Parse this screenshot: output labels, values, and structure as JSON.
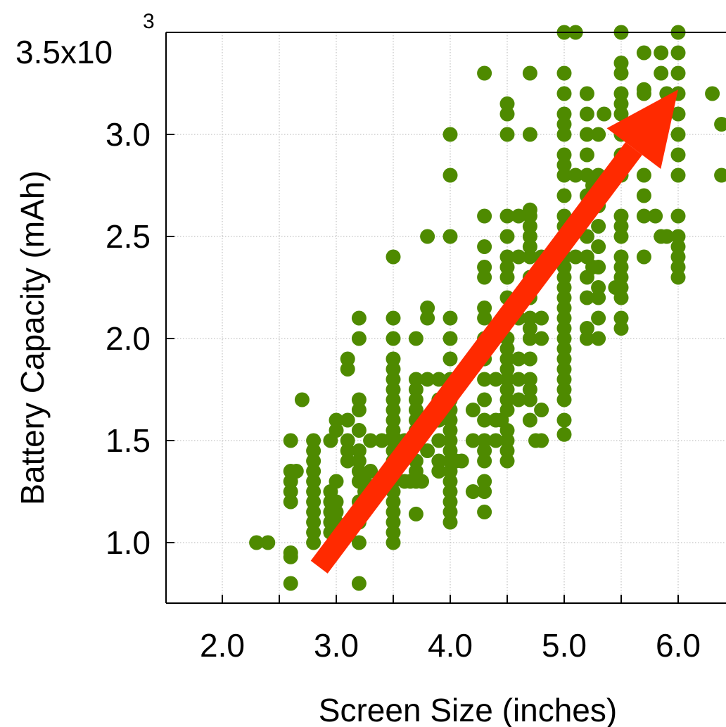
{
  "chart_data": {
    "type": "scatter",
    "xlabel": "Screen Size (inches)",
    "ylabel": "Battery Capacity (mAh)",
    "y_scale_label": {
      "base": "3.5x10",
      "exponent": "3"
    },
    "xlim": [
      1.5,
      6.4
    ],
    "ylim": [
      0.7,
      3.5
    ],
    "x_ticks": [
      {
        "value": 2.0,
        "label": "2.0"
      },
      {
        "value": 3.0,
        "label": "3.0"
      },
      {
        "value": 4.0,
        "label": "4.0"
      },
      {
        "value": 5.0,
        "label": "5.0"
      },
      {
        "value": 6.0,
        "label": "6.0"
      }
    ],
    "y_ticks": [
      {
        "value": 1.0,
        "label": "1.0"
      },
      {
        "value": 1.5,
        "label": "1.5"
      },
      {
        "value": 2.0,
        "label": "2.0"
      },
      {
        "value": 2.5,
        "label": "2.5"
      },
      {
        "value": 3.0,
        "label": "3.0"
      }
    ],
    "x_grid": [
      2.0,
      2.5,
      3.0,
      3.5,
      4.0,
      4.5,
      5.0,
      5.5,
      6.0
    ],
    "y_grid": [
      1.0,
      1.5,
      2.0,
      2.5,
      3.0
    ],
    "grid": true,
    "point_color": "#4e8a00",
    "arrow_color": "#ff2a00",
    "trend_arrow": {
      "from": [
        2.85,
        0.88
      ],
      "to": [
        6.0,
        3.22
      ]
    },
    "points": [
      [
        2.3,
        1.0
      ],
      [
        2.4,
        1.0
      ],
      [
        2.6,
        0.95
      ],
      [
        2.6,
        0.93
      ],
      [
        2.6,
        0.8
      ],
      [
        2.6,
        1.2
      ],
      [
        2.6,
        1.25
      ],
      [
        2.6,
        1.3
      ],
      [
        2.6,
        1.35
      ],
      [
        2.6,
        1.5
      ],
      [
        2.65,
        1.35
      ],
      [
        2.7,
        1.7
      ],
      [
        2.8,
        1.0
      ],
      [
        2.8,
        1.05
      ],
      [
        2.8,
        1.1
      ],
      [
        2.8,
        1.15
      ],
      [
        2.8,
        1.2
      ],
      [
        2.8,
        1.25
      ],
      [
        2.8,
        1.3
      ],
      [
        2.8,
        1.35
      ],
      [
        2.8,
        1.4
      ],
      [
        2.8,
        1.45
      ],
      [
        2.8,
        1.5
      ],
      [
        2.95,
        1.05
      ],
      [
        2.95,
        1.1
      ],
      [
        2.95,
        1.15
      ],
      [
        2.95,
        1.2
      ],
      [
        2.95,
        1.25
      ],
      [
        2.95,
        1.5
      ],
      [
        3.0,
        1.0
      ],
      [
        3.0,
        1.05
      ],
      [
        3.0,
        1.1
      ],
      [
        3.0,
        1.15
      ],
      [
        3.0,
        1.2
      ],
      [
        3.0,
        1.3
      ],
      [
        3.0,
        1.55
      ],
      [
        3.0,
        1.6
      ],
      [
        3.1,
        1.4
      ],
      [
        3.1,
        1.45
      ],
      [
        3.1,
        1.5
      ],
      [
        3.1,
        1.6
      ],
      [
        3.1,
        1.85
      ],
      [
        3.1,
        1.9
      ],
      [
        3.2,
        0.8
      ],
      [
        3.2,
        1.0
      ],
      [
        3.2,
        1.1
      ],
      [
        3.2,
        1.2
      ],
      [
        3.2,
        1.3
      ],
      [
        3.2,
        1.35
      ],
      [
        3.2,
        1.4
      ],
      [
        3.2,
        1.45
      ],
      [
        3.2,
        1.55
      ],
      [
        3.2,
        1.65
      ],
      [
        3.2,
        1.7
      ],
      [
        3.2,
        2.0
      ],
      [
        3.2,
        2.1
      ],
      [
        3.25,
        1.25
      ],
      [
        3.25,
        1.3
      ],
      [
        3.3,
        1.35
      ],
      [
        3.3,
        1.5
      ],
      [
        3.4,
        1.5
      ],
      [
        3.5,
        1.52
      ],
      [
        3.5,
        1.0
      ],
      [
        3.5,
        1.05
      ],
      [
        3.5,
        1.1
      ],
      [
        3.5,
        1.15
      ],
      [
        3.5,
        1.2
      ],
      [
        3.5,
        1.25
      ],
      [
        3.5,
        1.3
      ],
      [
        3.5,
        1.35
      ],
      [
        3.5,
        1.4
      ],
      [
        3.5,
        1.45
      ],
      [
        3.5,
        1.5
      ],
      [
        3.5,
        1.55
      ],
      [
        3.5,
        1.6
      ],
      [
        3.5,
        1.65
      ],
      [
        3.5,
        1.7
      ],
      [
        3.5,
        1.75
      ],
      [
        3.5,
        1.8
      ],
      [
        3.5,
        1.85
      ],
      [
        3.5,
        1.9
      ],
      [
        3.5,
        2.0
      ],
      [
        3.5,
        2.1
      ],
      [
        3.5,
        2.4
      ],
      [
        3.6,
        1.3
      ],
      [
        3.6,
        1.5
      ],
      [
        3.65,
        1.3
      ],
      [
        3.7,
        1.14
      ],
      [
        3.7,
        1.3
      ],
      [
        3.7,
        1.35
      ],
      [
        3.7,
        1.4
      ],
      [
        3.7,
        1.5
      ],
      [
        3.7,
        1.55
      ],
      [
        3.7,
        1.6
      ],
      [
        3.7,
        1.65
      ],
      [
        3.7,
        1.7
      ],
      [
        3.7,
        1.75
      ],
      [
        3.7,
        1.8
      ],
      [
        3.7,
        2.0
      ],
      [
        3.75,
        1.3
      ],
      [
        3.8,
        1.6
      ],
      [
        3.8,
        1.8
      ],
      [
        3.8,
        1.45
      ],
      [
        3.8,
        2.1
      ],
      [
        3.8,
        2.15
      ],
      [
        3.8,
        2.5
      ],
      [
        3.9,
        1.35
      ],
      [
        3.9,
        1.4
      ],
      [
        3.9,
        1.5
      ],
      [
        3.9,
        1.6
      ],
      [
        3.9,
        1.7
      ],
      [
        3.9,
        1.8
      ],
      [
        4.0,
        1.1
      ],
      [
        4.0,
        1.15
      ],
      [
        4.0,
        1.2
      ],
      [
        4.0,
        1.25
      ],
      [
        4.0,
        1.3
      ],
      [
        4.0,
        1.35
      ],
      [
        4.0,
        1.4
      ],
      [
        4.0,
        1.45
      ],
      [
        4.0,
        1.5
      ],
      [
        4.0,
        1.55
      ],
      [
        4.0,
        1.6
      ],
      [
        4.0,
        1.65
      ],
      [
        4.0,
        1.7
      ],
      [
        4.0,
        1.8
      ],
      [
        4.0,
        1.9
      ],
      [
        4.0,
        2.0
      ],
      [
        4.0,
        2.1
      ],
      [
        4.0,
        2.5
      ],
      [
        4.0,
        2.8
      ],
      [
        4.0,
        3.0
      ],
      [
        4.05,
        1.4
      ],
      [
        4.1,
        1.4
      ],
      [
        4.2,
        1.25
      ],
      [
        4.2,
        1.5
      ],
      [
        4.2,
        1.65
      ],
      [
        4.3,
        1.15
      ],
      [
        4.3,
        1.25
      ],
      [
        4.3,
        1.3
      ],
      [
        4.3,
        1.4
      ],
      [
        4.3,
        1.45
      ],
      [
        4.3,
        1.5
      ],
      [
        4.3,
        1.6
      ],
      [
        4.3,
        1.7
      ],
      [
        4.3,
        1.8
      ],
      [
        4.3,
        1.9
      ],
      [
        4.3,
        2.0
      ],
      [
        4.3,
        2.1
      ],
      [
        4.3,
        2.15
      ],
      [
        4.3,
        2.3
      ],
      [
        4.3,
        2.35
      ],
      [
        4.3,
        2.45
      ],
      [
        4.3,
        2.6
      ],
      [
        4.3,
        3.3
      ],
      [
        4.4,
        1.5
      ],
      [
        4.4,
        1.6
      ],
      [
        4.4,
        1.8
      ],
      [
        4.45,
        1.6
      ],
      [
        4.5,
        1.4
      ],
      [
        4.5,
        1.45
      ],
      [
        4.5,
        1.5
      ],
      [
        4.5,
        1.55
      ],
      [
        4.5,
        1.65
      ],
      [
        4.5,
        1.7
      ],
      [
        4.5,
        1.75
      ],
      [
        4.5,
        1.8
      ],
      [
        4.5,
        1.85
      ],
      [
        4.5,
        1.9
      ],
      [
        4.5,
        1.95
      ],
      [
        4.5,
        2.0
      ],
      [
        4.5,
        2.1
      ],
      [
        4.5,
        2.2
      ],
      [
        4.5,
        2.3
      ],
      [
        4.5,
        2.35
      ],
      [
        4.5,
        2.4
      ],
      [
        4.5,
        2.5
      ],
      [
        4.5,
        2.6
      ],
      [
        4.5,
        3.0
      ],
      [
        4.5,
        3.1
      ],
      [
        4.5,
        3.15
      ],
      [
        4.6,
        1.7
      ],
      [
        4.6,
        1.8
      ],
      [
        4.6,
        1.9
      ],
      [
        4.6,
        2.1
      ],
      [
        4.6,
        2.2
      ],
      [
        4.6,
        2.4
      ],
      [
        4.6,
        2.6
      ],
      [
        4.7,
        1.6
      ],
      [
        4.7,
        1.7
      ],
      [
        4.7,
        1.75
      ],
      [
        4.7,
        1.8
      ],
      [
        4.7,
        1.9
      ],
      [
        4.7,
        2.0
      ],
      [
        4.7,
        2.05
      ],
      [
        4.7,
        2.1
      ],
      [
        4.7,
        2.2
      ],
      [
        4.7,
        2.3
      ],
      [
        4.7,
        2.4
      ],
      [
        4.7,
        2.45
      ],
      [
        4.7,
        2.5
      ],
      [
        4.7,
        2.55
      ],
      [
        4.7,
        2.6
      ],
      [
        4.7,
        2.63
      ],
      [
        4.7,
        3.0
      ],
      [
        4.7,
        3.3
      ],
      [
        4.75,
        1.5
      ],
      [
        4.8,
        1.5
      ],
      [
        4.8,
        1.65
      ],
      [
        4.8,
        2.0
      ],
      [
        4.8,
        2.1
      ],
      [
        4.8,
        2.4
      ],
      [
        5.0,
        1.53
      ],
      [
        5.0,
        1.6
      ],
      [
        5.0,
        1.7
      ],
      [
        5.0,
        1.75
      ],
      [
        5.0,
        1.8
      ],
      [
        5.0,
        1.85
      ],
      [
        5.0,
        1.9
      ],
      [
        5.0,
        1.95
      ],
      [
        5.0,
        2.0
      ],
      [
        5.0,
        2.05
      ],
      [
        5.0,
        2.1
      ],
      [
        5.0,
        2.15
      ],
      [
        5.0,
        2.2
      ],
      [
        5.0,
        2.25
      ],
      [
        5.0,
        2.3
      ],
      [
        5.0,
        2.35
      ],
      [
        5.0,
        2.4
      ],
      [
        5.0,
        2.45
      ],
      [
        5.0,
        2.5
      ],
      [
        5.0,
        2.55
      ],
      [
        5.0,
        2.6
      ],
      [
        5.0,
        2.7
      ],
      [
        5.0,
        2.8
      ],
      [
        5.0,
        2.85
      ],
      [
        5.0,
        2.9
      ],
      [
        5.0,
        3.0
      ],
      [
        5.0,
        3.05
      ],
      [
        5.0,
        3.1
      ],
      [
        5.0,
        3.2
      ],
      [
        5.0,
        3.3
      ],
      [
        5.0,
        3.5
      ],
      [
        5.1,
        2.4
      ],
      [
        5.1,
        2.8
      ],
      [
        5.1,
        3.5
      ],
      [
        5.2,
        2.2
      ],
      [
        5.2,
        2.3
      ],
      [
        5.2,
        2.4
      ],
      [
        5.2,
        2.5
      ],
      [
        5.2,
        2.6
      ],
      [
        5.2,
        2.7
      ],
      [
        5.2,
        2.8
      ],
      [
        5.2,
        2.9
      ],
      [
        5.2,
        3.0
      ],
      [
        5.2,
        3.1
      ],
      [
        5.2,
        3.2
      ],
      [
        5.2,
        2.0
      ],
      [
        5.2,
        2.05
      ],
      [
        5.25,
        2.35
      ],
      [
        5.25,
        2.75
      ],
      [
        5.3,
        2.0
      ],
      [
        5.3,
        2.1
      ],
      [
        5.3,
        2.2
      ],
      [
        5.3,
        2.25
      ],
      [
        5.3,
        2.35
      ],
      [
        5.3,
        2.45
      ],
      [
        5.3,
        2.55
      ],
      [
        5.3,
        2.65
      ],
      [
        5.3,
        2.8
      ],
      [
        5.3,
        3.0
      ],
      [
        5.35,
        3.1
      ],
      [
        5.5,
        2.05
      ],
      [
        5.5,
        2.1
      ],
      [
        5.5,
        2.2
      ],
      [
        5.5,
        2.25
      ],
      [
        5.5,
        2.3
      ],
      [
        5.5,
        2.35
      ],
      [
        5.5,
        2.4
      ],
      [
        5.5,
        2.5
      ],
      [
        5.5,
        2.55
      ],
      [
        5.5,
        2.6
      ],
      [
        5.5,
        2.8
      ],
      [
        5.5,
        2.9
      ],
      [
        5.5,
        3.0
      ],
      [
        5.5,
        3.1
      ],
      [
        5.5,
        3.15
      ],
      [
        5.5,
        3.2
      ],
      [
        5.5,
        3.3
      ],
      [
        5.5,
        3.35
      ],
      [
        5.5,
        3.5
      ],
      [
        5.45,
        2.25
      ],
      [
        5.6,
        3.0
      ],
      [
        5.7,
        2.4
      ],
      [
        5.7,
        2.6
      ],
      [
        5.7,
        2.7
      ],
      [
        5.7,
        2.8
      ],
      [
        5.7,
        3.0
      ],
      [
        5.7,
        3.2
      ],
      [
        5.7,
        3.22
      ],
      [
        5.7,
        3.4
      ],
      [
        5.8,
        2.6
      ],
      [
        5.85,
        2.5
      ],
      [
        5.85,
        3.3
      ],
      [
        5.85,
        3.4
      ],
      [
        5.9,
        2.5
      ],
      [
        5.9,
        3.2
      ],
      [
        6.0,
        2.3
      ],
      [
        6.0,
        2.35
      ],
      [
        6.0,
        2.4
      ],
      [
        6.0,
        2.45
      ],
      [
        6.0,
        2.5
      ],
      [
        6.0,
        2.6
      ],
      [
        6.0,
        2.8
      ],
      [
        6.0,
        2.9
      ],
      [
        6.0,
        3.0
      ],
      [
        6.0,
        3.1
      ],
      [
        6.0,
        3.2
      ],
      [
        6.0,
        3.3
      ],
      [
        6.0,
        3.4
      ],
      [
        6.0,
        3.5
      ],
      [
        6.3,
        3.2
      ],
      [
        6.38,
        3.05
      ],
      [
        6.38,
        2.8
      ]
    ]
  }
}
